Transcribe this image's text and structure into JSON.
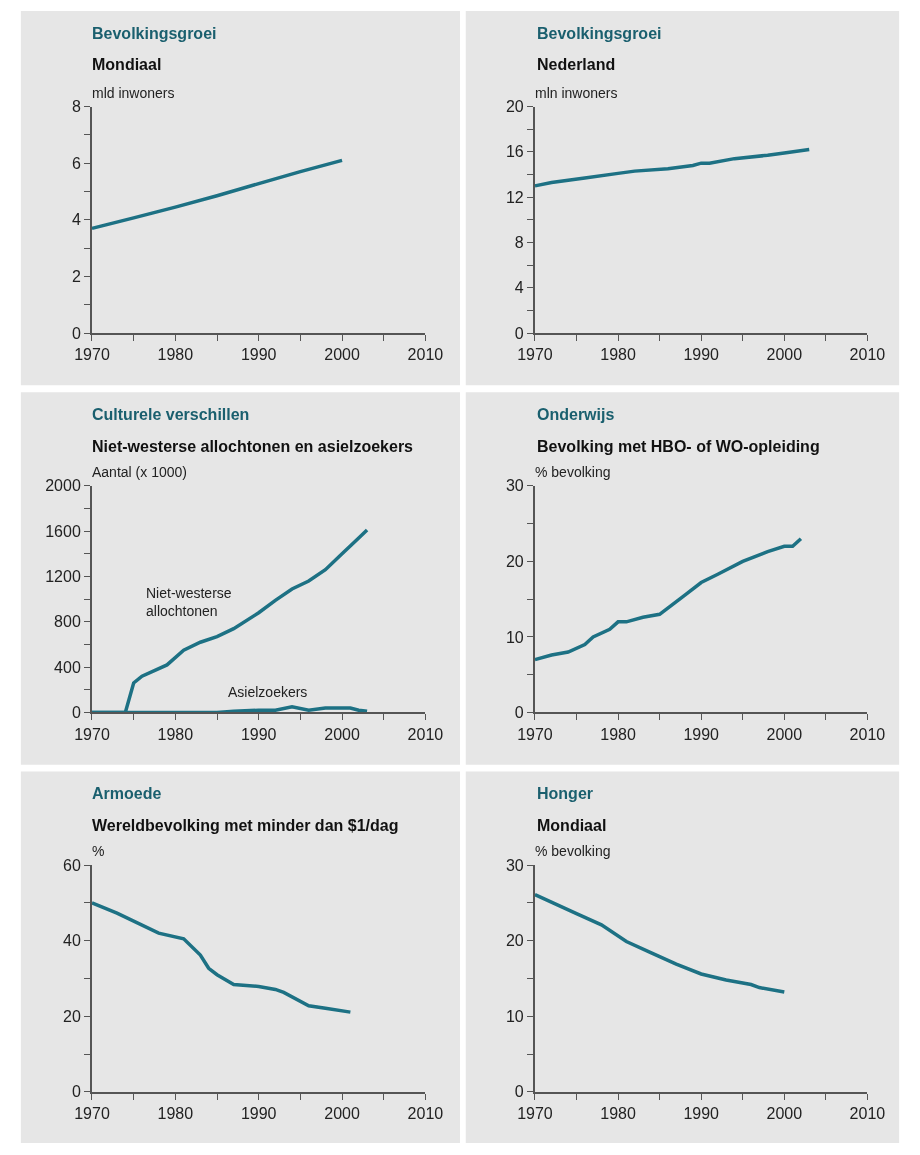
{
  "chart_data": [
    {
      "type": "line",
      "title": "Bevolkingsgroei",
      "subtitle": "Mondiaal",
      "ylabel": "mld inwoners",
      "x": [
        1970,
        1975,
        1980,
        1985,
        1990,
        1995,
        2000
      ],
      "series": [
        {
          "color": "#1d7184",
          "values": [
            3.7,
            4.07,
            4.45,
            4.85,
            5.28,
            5.7,
            6.1
          ]
        }
      ],
      "xlim": [
        1970,
        2010
      ],
      "xticks": [
        1970,
        {
          "value": 1975,
          "label": null
        },
        1980,
        {
          "value": 1985,
          "label": null
        },
        1990,
        {
          "value": 1995,
          "label": null
        },
        2000,
        {
          "value": 2005,
          "label": null
        },
        2010
      ],
      "ylim": [
        0,
        8
      ],
      "yticks": [
        0,
        {
          "value": 1,
          "label": null
        },
        2,
        {
          "value": 3,
          "label": null
        },
        4,
        {
          "value": 5,
          "label": null
        },
        6,
        {
          "value": 7,
          "label": null
        },
        8
      ],
      "grid": false,
      "legend": false
    },
    {
      "type": "line",
      "title": "Bevolkingsgroei",
      "subtitle": "Nederland",
      "ylabel": "mln inwoners",
      "x": [
        1970,
        1972,
        1976,
        1980,
        1982,
        1986,
        1989,
        1990,
        1991,
        1994,
        1998,
        2000,
        2003
      ],
      "series": [
        {
          "color": "#1d7184",
          "values": [
            13.0,
            13.3,
            13.7,
            14.1,
            14.3,
            14.5,
            14.8,
            15.0,
            15.0,
            15.4,
            15.7,
            15.9,
            16.2
          ]
        }
      ],
      "xlim": [
        1970,
        2010
      ],
      "xticks": [
        1970,
        {
          "value": 1975,
          "label": null
        },
        1980,
        {
          "value": 1985,
          "label": null
        },
        1990,
        {
          "value": 1995,
          "label": null
        },
        2000,
        {
          "value": 2005,
          "label": null
        },
        2010
      ],
      "ylim": [
        0,
        20
      ],
      "yticks": [
        0,
        {
          "value": 2,
          "label": null
        },
        4,
        {
          "value": 6,
          "label": null
        },
        8,
        {
          "value": 10,
          "label": null
        },
        12,
        {
          "value": 14,
          "label": null
        },
        16,
        {
          "value": 18,
          "label": null
        },
        20
      ],
      "grid": false,
      "legend": false
    },
    {
      "type": "line",
      "title": "Culturele verschillen",
      "subtitle": "Niet-westerse allochtonen en asielzoekers",
      "ylabel": "Aantal (x 1000)",
      "series": [
        {
          "name": "Niet-westerse\nallochtonen",
          "color": "#1d7184",
          "x": [
            1970,
            1974,
            1975,
            1976,
            1979,
            1981,
            1983,
            1985,
            1987,
            1990,
            1992,
            1994,
            1996,
            1998,
            2000,
            2002,
            2003
          ],
          "values": [
            0,
            0,
            260,
            320,
            420,
            550,
            620,
            670,
            740,
            880,
            990,
            1090,
            1160,
            1260,
            1400,
            1540,
            1610
          ]
        },
        {
          "name": "Asielzoekers",
          "color": "#1d7184",
          "x": [
            1970,
            1985,
            1987,
            1990,
            1992,
            1994,
            1996,
            1998,
            2000,
            2001,
            2002,
            2003
          ],
          "values": [
            0,
            0,
            10,
            20,
            20,
            50,
            20,
            40,
            40,
            40,
            20,
            10
          ]
        }
      ],
      "xlim": [
        1970,
        2010
      ],
      "xticks": [
        1970,
        {
          "value": 1975,
          "label": null
        },
        1980,
        {
          "value": 1985,
          "label": null
        },
        1990,
        {
          "value": 1995,
          "label": null
        },
        2000,
        {
          "value": 2005,
          "label": null
        },
        2010
      ],
      "ylim": [
        0,
        2000
      ],
      "yticks": [
        0,
        {
          "value": 200,
          "label": null
        },
        400,
        {
          "value": 600,
          "label": null
        },
        800,
        {
          "value": 1000,
          "label": null
        },
        1200,
        {
          "value": 1400,
          "label": null
        },
        1600,
        {
          "value": 1800,
          "label": null
        },
        2000
      ],
      "grid": false,
      "legend": false
    },
    {
      "type": "line",
      "title": "Onderwijs",
      "subtitle": "Bevolking met HBO- of WO-opleiding",
      "ylabel": "% bevolking",
      "x": [
        1970,
        1972,
        1974,
        1976,
        1977,
        1979,
        1980,
        1981,
        1983,
        1985,
        1988,
        1990,
        1992,
        1995,
        1998,
        2000,
        2001,
        2002
      ],
      "series": [
        {
          "color": "#1d7184",
          "values": [
            7.0,
            7.6,
            8.0,
            9.0,
            10.0,
            11.0,
            12.0,
            12.0,
            12.6,
            13.0,
            15.5,
            17.2,
            18.3,
            20.0,
            21.3,
            22.0,
            22.0,
            23.0
          ]
        }
      ],
      "xlim": [
        1970,
        2010
      ],
      "xticks": [
        1970,
        {
          "value": 1975,
          "label": null
        },
        1980,
        {
          "value": 1985,
          "label": null
        },
        1990,
        {
          "value": 1995,
          "label": null
        },
        2000,
        {
          "value": 2005,
          "label": null
        },
        2010
      ],
      "ylim": [
        0,
        30
      ],
      "yticks": [
        0,
        {
          "value": 5,
          "label": null
        },
        10,
        {
          "value": 15,
          "label": null
        },
        20,
        {
          "value": 25,
          "label": null
        },
        30
      ],
      "grid": false,
      "legend": false
    },
    {
      "type": "line",
      "title": "Armoede",
      "subtitle": "Wereldbevolking met minder dan $1/dag",
      "ylabel": "%",
      "x": [
        1970,
        1973,
        1978,
        1981,
        1983,
        1984,
        1985,
        1987,
        1990,
        1992,
        1993,
        1996,
        1998,
        2001
      ],
      "series": [
        {
          "color": "#1d7184",
          "values": [
            50,
            47.3,
            42,
            40.5,
            36.2,
            32.7,
            31,
            28.4,
            27.9,
            27.1,
            26.3,
            22.8,
            22.1,
            21.1
          ]
        }
      ],
      "xlim": [
        1970,
        2010
      ],
      "xticks": [
        1970,
        {
          "value": 1975,
          "label": null
        },
        1980,
        {
          "value": 1985,
          "label": null
        },
        1990,
        {
          "value": 1995,
          "label": null
        },
        2000,
        {
          "value": 2005,
          "label": null
        },
        2010
      ],
      "ylim": [
        0,
        60
      ],
      "yticks": [
        0,
        {
          "value": 10,
          "label": null
        },
        20,
        {
          "value": 30,
          "label": null
        },
        40,
        {
          "value": 50,
          "label": null
        },
        60
      ],
      "grid": false,
      "legend": false
    },
    {
      "type": "line",
      "title": "Honger",
      "subtitle": "Mondiaal",
      "ylabel": "% bevolking",
      "x": [
        1970,
        1975,
        1978,
        1981,
        1984,
        1987,
        1990,
        1993,
        1996,
        1997,
        2000
      ],
      "series": [
        {
          "color": "#1d7184",
          "values": [
            26.1,
            23.6,
            22.1,
            19.9,
            18.4,
            16.9,
            15.6,
            14.8,
            14.2,
            13.8,
            13.2
          ]
        }
      ],
      "xlim": [
        1970,
        2010
      ],
      "xticks": [
        1970,
        {
          "value": 1975,
          "label": null
        },
        1980,
        {
          "value": 1985,
          "label": null
        },
        1990,
        {
          "value": 1995,
          "label": null
        },
        2000,
        {
          "value": 2005,
          "label": null
        },
        2010
      ],
      "ylim": [
        0,
        30
      ],
      "yticks": [
        0,
        {
          "value": 5,
          "label": null
        },
        10,
        {
          "value": 15,
          "label": null
        },
        20,
        {
          "value": 25,
          "label": null
        },
        30
      ],
      "grid": false,
      "legend": false
    }
  ]
}
